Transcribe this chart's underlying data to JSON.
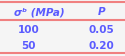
{
  "title_col1": "σᵇ (MPa)",
  "title_col2": "P",
  "rows": [
    [
      "100",
      "0.05"
    ],
    [
      "50",
      "0.20"
    ]
  ],
  "line_color": "#f08080",
  "header_color": "#5b5bff",
  "data_color": "#5b5bff",
  "bg_color": "#f5f5f5",
  "line_width": 1.5
}
